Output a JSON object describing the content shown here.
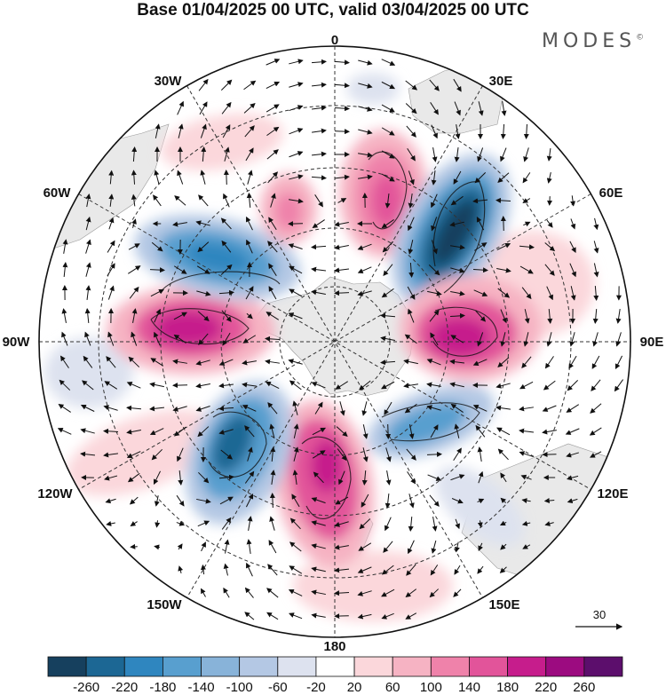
{
  "title": "Base 01/04/2025 00 UTC, valid 03/04/2025 00 UTC",
  "brand": "MODES",
  "brand_mark": "©",
  "projection": "south-polar-stereographic",
  "lon_labels": {
    "lon_0": "0",
    "lon_30e": "30E",
    "lon_60e": "60E",
    "lon_90e": "90E",
    "lon_120e": "120E",
    "lon_150e": "150E",
    "lon_180": "180",
    "lon_150w": "150W",
    "lon_120w": "120W",
    "lon_90w": "90W",
    "lon_60w": "60W",
    "lon_30w": "30W"
  },
  "vector_reference": {
    "label": "30"
  },
  "colorbar": {
    "ticks": [
      "-260",
      "-220",
      "-180",
      "-140",
      "-100",
      "-60",
      "-20",
      "20",
      "60",
      "100",
      "140",
      "180",
      "220",
      "260"
    ],
    "colors": [
      "#16405e",
      "#1c6794",
      "#2f86bf",
      "#589fcf",
      "#88b3d9",
      "#b4c8e4",
      "#dde2ef",
      "#ffffff",
      "#fbd7db",
      "#f6b3c3",
      "#ef82aa",
      "#e2549a",
      "#c61d8c",
      "#9c0b80",
      "#5c0e6c"
    ]
  },
  "anomaly_centers": [
    {
      "lon": 15,
      "value": 160,
      "color": "#e2549a"
    },
    {
      "lon": 43,
      "value": -260,
      "color": "#16405e"
    },
    {
      "lon": 90,
      "value": 200,
      "color": "#c61d8c"
    },
    {
      "lon": 118,
      "value": -140,
      "color": "#589fcf"
    },
    {
      "lon": 168,
      "value": 200,
      "color": "#c61d8c"
    },
    {
      "lon": 212,
      "value": -200,
      "color": "#2f86bf"
    },
    {
      "lon": 273,
      "value": 200,
      "color": "#c61d8c"
    },
    {
      "lon": 313,
      "value": -180,
      "color": "#2f86bf"
    },
    {
      "lon": 340,
      "value": 100,
      "color": "#f6b3c3"
    }
  ]
}
